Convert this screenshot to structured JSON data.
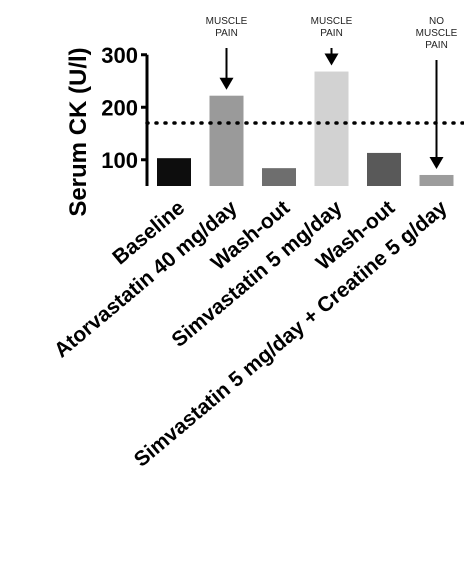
{
  "chart_data": {
    "type": "bar",
    "ylabel": "Serum CK (U/l)",
    "ylim": [
      50,
      300
    ],
    "yticks": [
      100,
      200,
      300
    ],
    "categories": [
      "Baseline",
      "Atorvastatin 40 mg/day",
      "Wash-out",
      "Simvastatin 5 mg/day",
      "Wash-out",
      "Simvastatin 5 mg/day + Creatine 5 g/day"
    ],
    "values": [
      103,
      222,
      84,
      268,
      113,
      71
    ],
    "bar_colors": [
      "#0d0d0d",
      "#9a9a9a",
      "#6e6e6e",
      "#d2d2d2",
      "#595959",
      "#9c9c9c"
    ],
    "reference_line": {
      "value": 170,
      "style": "dotted"
    },
    "annotations": [
      {
        "category_index": 1,
        "lines": [
          "MUSCLE",
          "PAIN"
        ]
      },
      {
        "category_index": 3,
        "lines": [
          "MUSCLE",
          "PAIN"
        ]
      },
      {
        "category_index": 5,
        "lines": [
          "NO",
          "MUSCLE",
          "PAIN"
        ]
      }
    ]
  }
}
